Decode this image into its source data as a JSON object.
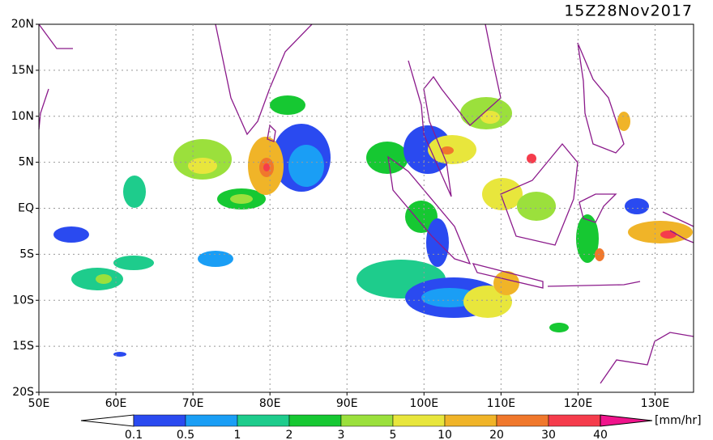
{
  "title": "15Z28Nov2017",
  "map": {
    "lat_labels": [
      "20N",
      "15N",
      "10N",
      "5N",
      "EQ",
      "5S",
      "10S",
      "15S",
      "20S"
    ],
    "lon_labels": [
      "50E",
      "60E",
      "70E",
      "80E",
      "90E",
      "100E",
      "110E",
      "120E",
      "130E"
    ]
  },
  "colorbar": {
    "levels": [
      0.1,
      0.5,
      1,
      2,
      3,
      5,
      10,
      20,
      30,
      40
    ],
    "colors": [
      "#2a4af0",
      "#1a9ef5",
      "#1ecc8c",
      "#16c832",
      "#9be03c",
      "#e8e63c",
      "#f0b428",
      "#f0782c",
      "#f53c4c"
    ],
    "over_color": "#f0148c",
    "unit": "[mm/hr]"
  }
}
